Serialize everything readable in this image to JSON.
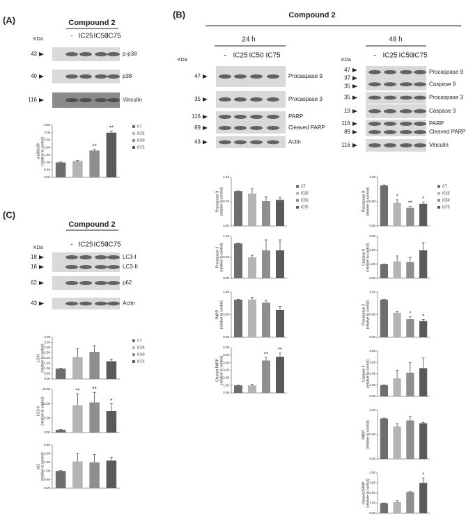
{
  "panels": [
    {
      "label": "(A)",
      "title": "Compound 2"
    },
    {
      "label": "(B)",
      "title": "Compound 2"
    },
    {
      "label": "(C)",
      "title": "Compound 2"
    }
  ],
  "blot_groups": [
    {
      "kda": "KDa",
      "lanes": [
        "-",
        "IC25",
        "IC50",
        "IC75"
      ],
      "blots": [
        {
          "markers": [
            "43"
          ],
          "proteins": [
            "p-p38"
          ]
        },
        {
          "markers": [
            "40"
          ],
          "proteins": [
            "p38"
          ]
        },
        {
          "markers": [
            "116"
          ],
          "proteins": [
            "Vinculin"
          ]
        }
      ]
    },
    {
      "title": "24 h",
      "kda": "KDa",
      "lanes": [
        "-",
        "IC25",
        "IC50",
        "IC75"
      ],
      "blots": [
        {
          "markers": [
            "47"
          ],
          "proteins": [
            "Procaspase 9"
          ]
        },
        {
          "markers": [
            "35"
          ],
          "proteins": [
            "Procaspase 3"
          ]
        },
        {
          "markers": [
            "116",
            "89"
          ],
          "proteins": [
            "PARP",
            "Cleaved PARP"
          ]
        },
        {
          "markers": [
            "43"
          ],
          "proteins": [
            "Actin"
          ]
        }
      ]
    },
    {
      "title": "48 h",
      "kda": "KDa",
      "lanes": [
        "-",
        "IC25",
        "IC50",
        "IC75"
      ],
      "blots": [
        {
          "markers": [
            "47",
            "37",
            "35"
          ],
          "proteins": [
            "Procaspase 9",
            "Caspase 9"
          ]
        },
        {
          "markers": [
            "35"
          ],
          "proteins": [
            "Procaspase 3"
          ]
        },
        {
          "markers": [
            "19"
          ],
          "proteins": [
            "Caspase 3"
          ]
        },
        {
          "markers": [
            "116",
            "89"
          ],
          "proteins": [
            "PARP",
            "Cleaved PARP"
          ]
        },
        {
          "markers": [
            "116"
          ],
          "proteins": [
            "Vinculin"
          ]
        }
      ]
    },
    {
      "kda": "KDa",
      "lanes": [
        "-",
        "IC25",
        "IC50",
        "IC75"
      ],
      "blots": [
        {
          "markers": [
            "18",
            "16"
          ],
          "proteins": [
            "LC3-I",
            "LC3-II"
          ]
        },
        {
          "markers": [
            "62"
          ],
          "proteins": [
            "p62"
          ]
        },
        {
          "markers": [
            "43"
          ],
          "proteins": [
            "Actin"
          ]
        }
      ]
    }
  ],
  "chart_data": [
    {
      "type": "bar",
      "ylabel": [
        "p-p38/p38",
        "(relative to control)"
      ],
      "legend": true,
      "categories": [
        "CT",
        "IC25",
        "IC50",
        "IC75"
      ],
      "colors": [
        "#6e6e6e",
        "#b4b4b4",
        "#8e8e8e",
        "#5a5a5a"
      ],
      "values": [
        1.0,
        1.1,
        1.8,
        3.0
      ],
      "errors": [
        0.03,
        0.05,
        0.08,
        0.1
      ],
      "annotations": [
        {
          "index": 2,
          "text": "**"
        },
        {
          "index": 3,
          "text": "**"
        }
      ],
      "ylim": [
        0,
        3.5
      ],
      "yticks": [
        {
          "value": 0,
          "label": "0.00"
        },
        {
          "value": 0.5,
          "label": "0.50"
        },
        {
          "value": 1,
          "label": "1.00"
        },
        {
          "value": 1.5,
          "label": "1.50"
        },
        {
          "value": 2,
          "label": "2.00"
        },
        {
          "value": 2.5,
          "label": "2.50"
        },
        {
          "value": 3,
          "label": "3.00"
        },
        {
          "value": 3.5,
          "label": "3.50"
        }
      ]
    },
    {
      "type": "bar",
      "ylabel": [
        "Procaspase 9",
        "(relative to control)"
      ],
      "legend": true,
      "categories": [
        "CT",
        "IC25",
        "IC50",
        "IC75"
      ],
      "colors": [
        "#6e6e6e",
        "#b4b4b4",
        "#8e8e8e",
        "#5a5a5a"
      ],
      "values": [
        1.0,
        0.93,
        0.72,
        0.75
      ],
      "errors": [
        0.01,
        0.15,
        0.12,
        0.08
      ],
      "ylim": [
        0,
        1.4
      ],
      "yticks": [
        {
          "value": 0,
          "label": "0.00"
        },
        {
          "value": 0.7,
          "label": "0.70"
        },
        {
          "value": 1.4,
          "label": "1.40"
        }
      ]
    },
    {
      "type": "bar",
      "ylabel": [
        "Procaspase 3",
        "(relative to control)"
      ],
      "colors": [
        "#6e6e6e",
        "#b4b4b4",
        "#8e8e8e",
        "#5a5a5a"
      ],
      "values": [
        1.0,
        0.6,
        0.8,
        0.8
      ],
      "errors": [
        0.01,
        0.06,
        0.3,
        0.3
      ],
      "ylim": [
        0,
        1.2
      ],
      "yticks": [
        {
          "value": 0,
          "label": "0.00"
        },
        {
          "value": 0.6,
          "label": "0.60"
        },
        {
          "value": 1.2,
          "label": "1.20"
        }
      ]
    },
    {
      "type": "bar",
      "ylabel": [
        "PARP",
        "(relative to control)"
      ],
      "colors": [
        "#6e6e6e",
        "#b4b4b4",
        "#8e8e8e",
        "#5a5a5a"
      ],
      "values": [
        1.0,
        1.0,
        0.92,
        0.72
      ],
      "errors": [
        0.01,
        0.06,
        0.06,
        0.1
      ],
      "ylim": [
        0,
        1.2
      ],
      "yticks": [
        {
          "value": 0,
          "label": "0.00"
        },
        {
          "value": 0.6,
          "label": "0.60"
        },
        {
          "value": 1.2,
          "label": "1.20"
        }
      ]
    },
    {
      "type": "bar",
      "ylabel": [
        "Cleaved PARP",
        "(relative to control)"
      ],
      "colors": [
        "#6e6e6e",
        "#b4b4b4",
        "#8e8e8e",
        "#5a5a5a"
      ],
      "values": [
        1.0,
        1.0,
        4.3,
        4.8
      ],
      "errors": [
        0.02,
        0.15,
        0.4,
        0.5
      ],
      "annotations": [
        {
          "index": 2,
          "text": "**"
        },
        {
          "index": 3,
          "text": "**"
        }
      ],
      "ylim": [
        0,
        6
      ],
      "yticks": [
        {
          "value": 0,
          "label": "0.00"
        },
        {
          "value": 1,
          "label": "1.00"
        },
        {
          "value": 2,
          "label": "2.00"
        },
        {
          "value": 3,
          "label": "3.00"
        },
        {
          "value": 4,
          "label": "4.00"
        },
        {
          "value": 5,
          "label": "5.00"
        },
        {
          "value": 6,
          "label": "6.00"
        }
      ]
    },
    {
      "type": "bar",
      "ylabel": [
        "Procaspase 9",
        "(relative to control)"
      ],
      "legend": true,
      "categories": [
        "CT",
        "IC25",
        "IC50",
        "IC75"
      ],
      "colors": [
        "#6e6e6e",
        "#b4b4b4",
        "#8e8e8e",
        "#5a5a5a"
      ],
      "values": [
        1.0,
        0.57,
        0.45,
        0.55
      ],
      "errors": [
        0.01,
        0.08,
        0.04,
        0.04
      ],
      "annotations": [
        {
          "index": 1,
          "text": "*"
        },
        {
          "index": 2,
          "text": "**"
        },
        {
          "index": 3,
          "text": "*"
        }
      ],
      "ylim": [
        0,
        1.2
      ],
      "yticks": [
        {
          "value": 0,
          "label": "0.00"
        },
        {
          "value": 0.6,
          "label": "0.60"
        },
        {
          "value": 1.2,
          "label": "1.20"
        }
      ]
    },
    {
      "type": "bar",
      "ylabel": [
        "Caspase 9",
        "(relative to control)"
      ],
      "colors": [
        "#6e6e6e",
        "#b4b4b4",
        "#8e8e8e",
        "#5a5a5a"
      ],
      "values": [
        1.0,
        1.2,
        1.15,
        2.0
      ],
      "errors": [
        0.01,
        0.4,
        0.35,
        0.55
      ],
      "ylim": [
        0,
        3
      ],
      "yticks": [
        {
          "value": 0,
          "label": "0.00"
        },
        {
          "value": 1,
          "label": "1.00"
        },
        {
          "value": 2,
          "label": "2.00"
        },
        {
          "value": 3,
          "label": "3.00"
        }
      ]
    },
    {
      "type": "bar",
      "ylabel": [
        "Procaspase 3",
        "(relative to control)"
      ],
      "colors": [
        "#6e6e6e",
        "#b4b4b4",
        "#8e8e8e",
        "#5a5a5a"
      ],
      "values": [
        1.0,
        0.65,
        0.48,
        0.43
      ],
      "errors": [
        0.01,
        0.04,
        0.07,
        0.04
      ],
      "annotations": [
        {
          "index": 2,
          "text": "*"
        },
        {
          "index": 3,
          "text": "*"
        }
      ],
      "ylim": [
        0,
        1.2
      ],
      "yticks": [
        {
          "value": 0,
          "label": "0.00"
        },
        {
          "value": 0.6,
          "label": "0.60"
        },
        {
          "value": 1.2,
          "label": "1.20"
        }
      ]
    },
    {
      "type": "bar",
      "ylabel": [
        "Caspase 3",
        "(relative to control)"
      ],
      "colors": [
        "#6e6e6e",
        "#b4b4b4",
        "#8e8e8e",
        "#5a5a5a"
      ],
      "values": [
        1.0,
        1.6,
        2.1,
        2.5
      ],
      "errors": [
        0.02,
        0.7,
        0.9,
        0.9
      ],
      "ylim": [
        0,
        4
      ],
      "yticks": [
        {
          "value": 0,
          "label": "0.00"
        },
        {
          "value": 1,
          "label": "1.00"
        },
        {
          "value": 2,
          "label": "2.00"
        },
        {
          "value": 3,
          "label": "3.00"
        },
        {
          "value": 4,
          "label": "4.00"
        }
      ]
    },
    {
      "type": "bar",
      "ylabel": [
        "PARP",
        "(relative to control)"
      ],
      "colors": [
        "#6e6e6e",
        "#b4b4b4",
        "#8e8e8e",
        "#5a5a5a"
      ],
      "values": [
        1.0,
        0.8,
        0.95,
        0.88
      ],
      "errors": [
        0.01,
        0.07,
        0.1,
        0.02
      ],
      "ylim": [
        0,
        1.2
      ],
      "yticks": [
        {
          "value": 0,
          "label": "0.00"
        },
        {
          "value": 0.6,
          "label": "0.60"
        },
        {
          "value": 1.2,
          "label": "1.20"
        }
      ]
    },
    {
      "type": "bar",
      "ylabel": [
        "Cleaved PARP",
        "(relative to control)"
      ],
      "colors": [
        "#6e6e6e",
        "#b4b4b4",
        "#8e8e8e",
        "#5a5a5a"
      ],
      "values": [
        1.0,
        1.1,
        2.1,
        3.0
      ],
      "errors": [
        0.02,
        0.15,
        0.05,
        0.5
      ],
      "annotations": [
        {
          "index": 3,
          "text": "*"
        }
      ],
      "ylim": [
        0,
        4
      ],
      "yticks": [
        {
          "value": 0,
          "label": "0.00"
        },
        {
          "value": 1,
          "label": "1.00"
        },
        {
          "value": 2,
          "label": "2.00"
        },
        {
          "value": 3,
          "label": "3.00"
        },
        {
          "value": 4,
          "label": "4.00"
        }
      ]
    },
    {
      "type": "bar",
      "ylabel": [
        "LC3-I",
        "(relative to control)"
      ],
      "legend": true,
      "categories": [
        "CT",
        "IC25",
        "IC50",
        "IC75"
      ],
      "colors": [
        "#6e6e6e",
        "#b4b4b4",
        "#8e8e8e",
        "#5a5a5a"
      ],
      "values": [
        1.0,
        2.1,
        2.6,
        1.7
      ],
      "errors": [
        0.02,
        0.8,
        0.6,
        0.2
      ],
      "ylim": [
        0,
        4
      ],
      "yticks": [
        {
          "value": 0,
          "label": "0.00"
        },
        {
          "value": 0.5,
          "label": "0.50"
        },
        {
          "value": 1,
          "label": "1.00"
        },
        {
          "value": 1.5,
          "label": "1.50"
        },
        {
          "value": 2,
          "label": "2.00"
        },
        {
          "value": 2.5,
          "label": "2.50"
        },
        {
          "value": 3,
          "label": "3.00"
        },
        {
          "value": 3.5,
          "label": "3.50"
        },
        {
          "value": 4,
          "label": "4.00"
        }
      ]
    },
    {
      "type": "bar",
      "ylabel": [
        "LC3-II",
        "(relative to control)"
      ],
      "colors": [
        "#6e6e6e",
        "#b4b4b4",
        "#8e8e8e",
        "#5a5a5a"
      ],
      "values": [
        1.0,
        9.5,
        10.5,
        7.5
      ],
      "errors": [
        0.1,
        4.0,
        3.5,
        2.5
      ],
      "annotations": [
        {
          "index": 1,
          "text": "**"
        },
        {
          "index": 2,
          "text": "**"
        },
        {
          "index": 3,
          "text": "*"
        }
      ],
      "ylim": [
        0,
        15
      ],
      "yticks": [
        {
          "value": 0,
          "label": "0.00"
        },
        {
          "value": 5,
          "label": "5.00"
        },
        {
          "value": 10,
          "label": "10.00"
        },
        {
          "value": 15,
          "label": "15.00"
        }
      ]
    },
    {
      "type": "bar",
      "ylabel": [
        "p62",
        "(relative to control)"
      ],
      "colors": [
        "#6e6e6e",
        "#b4b4b4",
        "#8e8e8e",
        "#5a5a5a"
      ],
      "values": [
        1.0,
        1.55,
        1.5,
        1.6
      ],
      "errors": [
        0.02,
        0.45,
        0.45,
        0.2
      ],
      "ylim": [
        0,
        2.5
      ],
      "yticks": [
        {
          "value": 0,
          "label": "0.00"
        },
        {
          "value": 0.5,
          "label": "0.50"
        },
        {
          "value": 1,
          "label": "1.00"
        },
        {
          "value": 1.5,
          "label": "1.50"
        },
        {
          "value": 2,
          "label": "2.00"
        },
        {
          "value": 2.5,
          "label": "2.50"
        }
      ]
    }
  ]
}
